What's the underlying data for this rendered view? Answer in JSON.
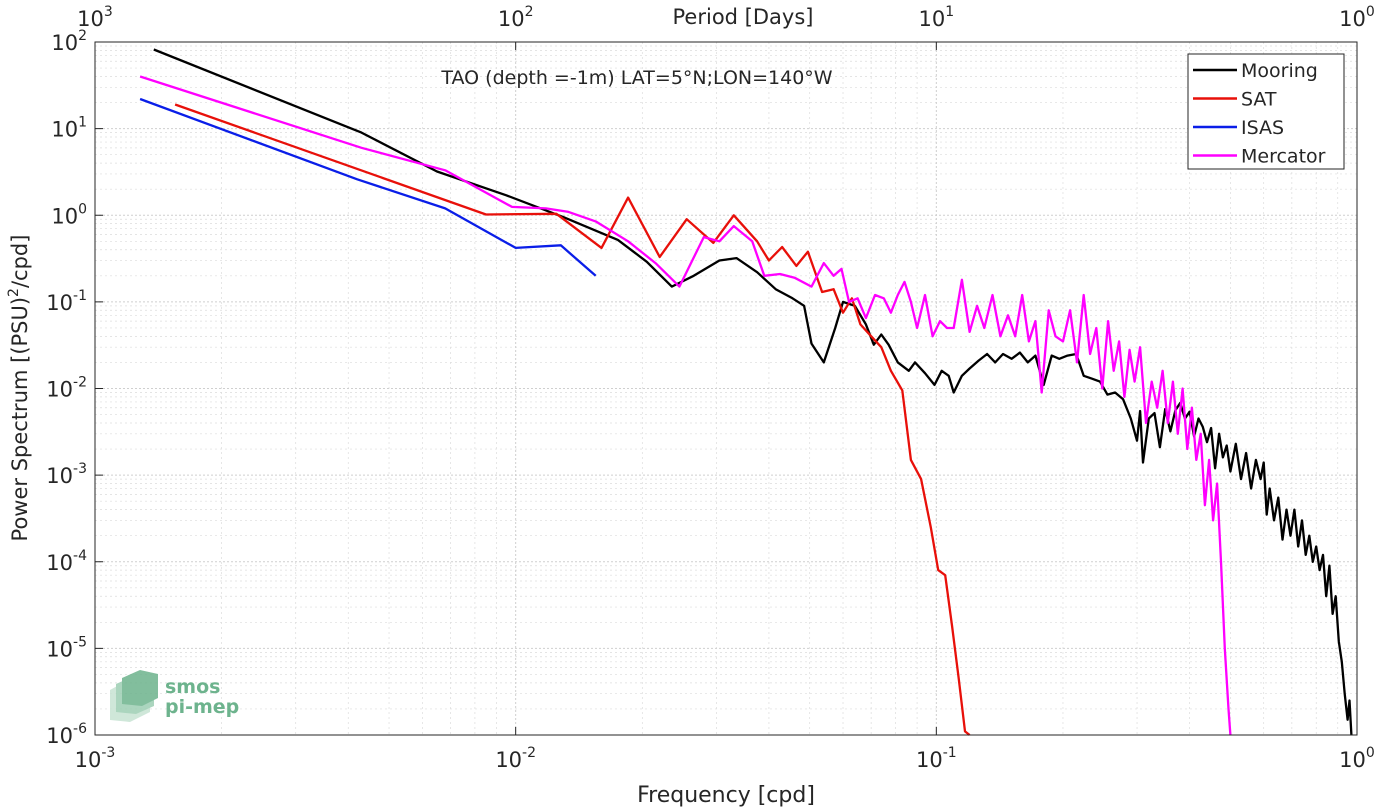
{
  "chart_data": {
    "type": "line",
    "title": "TAO (depth =-1m) LAT=5°N;LON=140°W",
    "xlabel": "Frequency [cpd]",
    "ylabel_main": "Power Spectrum [(PSU)",
    "ylabel_sup": "2",
    "ylabel_tail": "/cpd]",
    "top_xlabel": "Period [Days]",
    "xscale": "log",
    "yscale": "log",
    "xlim": [
      0.001,
      1
    ],
    "ylim": [
      1e-06,
      100
    ],
    "grid": true,
    "legend_position": "top-right",
    "x_ticks": [
      {
        "value": 0.001,
        "base": "10",
        "exp": "-3"
      },
      {
        "value": 0.01,
        "base": "10",
        "exp": "-2"
      },
      {
        "value": 0.1,
        "base": "10",
        "exp": "-1"
      },
      {
        "value": 1,
        "base": "10",
        "exp": "0"
      }
    ],
    "y_ticks": [
      {
        "value": 1e-06,
        "base": "10",
        "exp": "-6"
      },
      {
        "value": 1e-05,
        "base": "10",
        "exp": "-5"
      },
      {
        "value": 0.0001,
        "base": "10",
        "exp": "-4"
      },
      {
        "value": 0.001,
        "base": "10",
        "exp": "-3"
      },
      {
        "value": 0.01,
        "base": "10",
        "exp": "-2"
      },
      {
        "value": 0.1,
        "base": "10",
        "exp": "-1"
      },
      {
        "value": 1,
        "base": "10",
        "exp": "0"
      },
      {
        "value": 10,
        "base": "10",
        "exp": "1"
      },
      {
        "value": 100,
        "base": "10",
        "exp": "2"
      }
    ],
    "top_ticks": [
      {
        "period_days": 1000,
        "base": "10",
        "exp": "3"
      },
      {
        "period_days": 100,
        "base": "10",
        "exp": "2"
      },
      {
        "period_days": 10,
        "base": "10",
        "exp": "1"
      },
      {
        "period_days": 1,
        "base": "10",
        "exp": "0"
      }
    ],
    "series": [
      {
        "name": "Mooring",
        "color": "#000000",
        "points": [
          [
            0.00138,
            82
          ],
          [
            0.0043,
            9
          ],
          [
            0.0065,
            3.2
          ],
          [
            0.0095,
            1.7
          ],
          [
            0.013,
            0.95
          ],
          [
            0.0175,
            0.52
          ],
          [
            0.0205,
            0.29
          ],
          [
            0.0235,
            0.15
          ],
          [
            0.0265,
            0.2
          ],
          [
            0.0305,
            0.3
          ],
          [
            0.0335,
            0.32
          ],
          [
            0.0375,
            0.22
          ],
          [
            0.0415,
            0.14
          ],
          [
            0.0455,
            0.11
          ],
          [
            0.0485,
            0.09
          ],
          [
            0.0505,
            0.033
          ],
          [
            0.054,
            0.02
          ],
          [
            0.0575,
            0.05
          ],
          [
            0.06,
            0.1
          ],
          [
            0.064,
            0.09
          ],
          [
            0.068,
            0.055
          ],
          [
            0.071,
            0.032
          ],
          [
            0.074,
            0.042
          ],
          [
            0.077,
            0.032
          ],
          [
            0.081,
            0.02
          ],
          [
            0.086,
            0.016
          ],
          [
            0.089,
            0.02
          ],
          [
            0.094,
            0.015
          ],
          [
            0.099,
            0.011
          ],
          [
            0.103,
            0.016
          ],
          [
            0.107,
            0.014
          ],
          [
            0.11,
            0.009
          ],
          [
            0.115,
            0.014
          ],
          [
            0.12,
            0.017
          ],
          [
            0.126,
            0.021
          ],
          [
            0.132,
            0.025
          ],
          [
            0.138,
            0.02
          ],
          [
            0.144,
            0.025
          ],
          [
            0.151,
            0.022
          ],
          [
            0.158,
            0.026
          ],
          [
            0.165,
            0.02
          ],
          [
            0.172,
            0.024
          ],
          [
            0.18,
            0.011
          ],
          [
            0.188,
            0.024
          ],
          [
            0.196,
            0.022
          ],
          [
            0.205,
            0.024
          ],
          [
            0.215,
            0.025
          ],
          [
            0.224,
            0.014
          ],
          [
            0.234,
            0.013
          ],
          [
            0.245,
            0.012
          ],
          [
            0.255,
            0.0085
          ],
          [
            0.266,
            0.009
          ],
          [
            0.278,
            0.0075
          ],
          [
            0.29,
            0.0045
          ],
          [
            0.3,
            0.0025
          ],
          [
            0.305,
            0.0055
          ],
          [
            0.31,
            0.0014
          ],
          [
            0.32,
            0.0045
          ],
          [
            0.33,
            0.0052
          ],
          [
            0.34,
            0.0021
          ],
          [
            0.35,
            0.0058
          ],
          [
            0.36,
            0.0032
          ],
          [
            0.37,
            0.0056
          ],
          [
            0.38,
            0.0068
          ],
          [
            0.39,
            0.0045
          ],
          [
            0.4,
            0.0054
          ],
          [
            0.41,
            0.0028
          ],
          [
            0.42,
            0.0045
          ],
          [
            0.43,
            0.0036
          ],
          [
            0.44,
            0.0024
          ],
          [
            0.45,
            0.0035
          ],
          [
            0.46,
            0.0012
          ],
          [
            0.47,
            0.003
          ],
          [
            0.48,
            0.0016
          ],
          [
            0.49,
            0.0022
          ],
          [
            0.5,
            0.0011
          ],
          [
            0.515,
            0.0023
          ],
          [
            0.53,
            0.0009
          ],
          [
            0.545,
            0.0018
          ],
          [
            0.56,
            0.0007
          ],
          [
            0.575,
            0.0015
          ],
          [
            0.59,
            0.0009
          ],
          [
            0.6,
            0.0014
          ],
          [
            0.61,
            0.00035
          ],
          [
            0.62,
            0.0007
          ],
          [
            0.635,
            0.0003
          ],
          [
            0.65,
            0.00055
          ],
          [
            0.665,
            0.00018
          ],
          [
            0.68,
            0.0004
          ],
          [
            0.695,
            0.0002
          ],
          [
            0.71,
            0.0004
          ],
          [
            0.725,
            0.00015
          ],
          [
            0.74,
            0.0003
          ],
          [
            0.755,
            0.00012
          ],
          [
            0.77,
            0.0002
          ],
          [
            0.785,
            0.0001
          ],
          [
            0.8,
            0.00015
          ],
          [
            0.815,
            8e-05
          ],
          [
            0.83,
            0.00012
          ],
          [
            0.845,
            4e-05
          ],
          [
            0.86,
            9e-05
          ],
          [
            0.875,
            2.5e-05
          ],
          [
            0.89,
            4e-05
          ],
          [
            0.905,
            1.2e-05
          ],
          [
            0.92,
            7e-06
          ],
          [
            0.935,
            3e-06
          ],
          [
            0.95,
            1.5e-06
          ],
          [
            0.96,
            2.5e-06
          ],
          [
            0.97,
            1e-06
          ]
        ]
      },
      {
        "name": "SAT",
        "color": "#e8100a",
        "points": [
          [
            0.00155,
            19
          ],
          [
            0.0085,
            1.02
          ],
          [
            0.0125,
            1.04
          ],
          [
            0.016,
            0.42
          ],
          [
            0.0185,
            1.6
          ],
          [
            0.022,
            0.33
          ],
          [
            0.0255,
            0.9
          ],
          [
            0.0295,
            0.48
          ],
          [
            0.033,
            1.0
          ],
          [
            0.0375,
            0.5
          ],
          [
            0.04,
            0.3
          ],
          [
            0.043,
            0.43
          ],
          [
            0.0465,
            0.26
          ],
          [
            0.0495,
            0.38
          ],
          [
            0.0535,
            0.13
          ],
          [
            0.057,
            0.14
          ],
          [
            0.06,
            0.075
          ],
          [
            0.063,
            0.11
          ],
          [
            0.066,
            0.055
          ],
          [
            0.07,
            0.04
          ],
          [
            0.074,
            0.03
          ],
          [
            0.078,
            0.016
          ],
          [
            0.083,
            0.0095
          ],
          [
            0.087,
            0.0015
          ],
          [
            0.092,
            0.0009
          ],
          [
            0.097,
            0.00025
          ],
          [
            0.101,
            8e-05
          ],
          [
            0.105,
            7e-05
          ],
          [
            0.109,
            1.8e-05
          ],
          [
            0.113,
            4.5e-06
          ],
          [
            0.117,
            1.1e-06
          ],
          [
            0.12,
            1e-06
          ]
        ]
      },
      {
        "name": "ISAS",
        "color": "#0a1ee8",
        "points": [
          [
            0.00128,
            22
          ],
          [
            0.0042,
            2.6
          ],
          [
            0.0068,
            1.2
          ],
          [
            0.01,
            0.42
          ],
          [
            0.0128,
            0.45
          ],
          [
            0.0155,
            0.2
          ]
        ]
      },
      {
        "name": "Mercator",
        "color": "#ff00ff",
        "points": [
          [
            0.00128,
            40
          ],
          [
            0.0043,
            6
          ],
          [
            0.0068,
            3.3
          ],
          [
            0.0098,
            1.25
          ],
          [
            0.0118,
            1.2
          ],
          [
            0.0133,
            1.1
          ],
          [
            0.0155,
            0.85
          ],
          [
            0.0185,
            0.5
          ],
          [
            0.0215,
            0.28
          ],
          [
            0.0245,
            0.15
          ],
          [
            0.028,
            0.56
          ],
          [
            0.0305,
            0.5
          ],
          [
            0.033,
            0.75
          ],
          [
            0.0365,
            0.5
          ],
          [
            0.039,
            0.2
          ],
          [
            0.0425,
            0.21
          ],
          [
            0.046,
            0.19
          ],
          [
            0.0505,
            0.15
          ],
          [
            0.054,
            0.28
          ],
          [
            0.057,
            0.2
          ],
          [
            0.0595,
            0.24
          ],
          [
            0.062,
            0.1
          ],
          [
            0.065,
            0.11
          ],
          [
            0.068,
            0.065
          ],
          [
            0.0715,
            0.12
          ],
          [
            0.075,
            0.11
          ],
          [
            0.078,
            0.075
          ],
          [
            0.081,
            0.12
          ],
          [
            0.084,
            0.17
          ],
          [
            0.087,
            0.1
          ],
          [
            0.09,
            0.05
          ],
          [
            0.094,
            0.12
          ],
          [
            0.098,
            0.04
          ],
          [
            0.102,
            0.06
          ],
          [
            0.106,
            0.05
          ],
          [
            0.11,
            0.05
          ],
          [
            0.115,
            0.18
          ],
          [
            0.12,
            0.045
          ],
          [
            0.125,
            0.09
          ],
          [
            0.13,
            0.05
          ],
          [
            0.136,
            0.12
          ],
          [
            0.142,
            0.04
          ],
          [
            0.148,
            0.07
          ],
          [
            0.154,
            0.04
          ],
          [
            0.16,
            0.12
          ],
          [
            0.166,
            0.035
          ],
          [
            0.172,
            0.06
          ],
          [
            0.178,
            0.009
          ],
          [
            0.185,
            0.08
          ],
          [
            0.192,
            0.04
          ],
          [
            0.2,
            0.035
          ],
          [
            0.208,
            0.08
          ],
          [
            0.216,
            0.02
          ],
          [
            0.224,
            0.12
          ],
          [
            0.232,
            0.025
          ],
          [
            0.24,
            0.05
          ],
          [
            0.248,
            0.01
          ],
          [
            0.256,
            0.06
          ],
          [
            0.264,
            0.016
          ],
          [
            0.272,
            0.035
          ],
          [
            0.28,
            0.008
          ],
          [
            0.288,
            0.028
          ],
          [
            0.296,
            0.012
          ],
          [
            0.305,
            0.03
          ],
          [
            0.315,
            0.004
          ],
          [
            0.325,
            0.012
          ],
          [
            0.335,
            0.006
          ],
          [
            0.345,
            0.016
          ],
          [
            0.355,
            0.004
          ],
          [
            0.365,
            0.012
          ],
          [
            0.375,
            0.003
          ],
          [
            0.385,
            0.01
          ],
          [
            0.395,
            0.002
          ],
          [
            0.405,
            0.006
          ],
          [
            0.415,
            0.0015
          ],
          [
            0.425,
            0.003
          ],
          [
            0.435,
            0.00045
          ],
          [
            0.445,
            0.0015
          ],
          [
            0.455,
            0.0003
          ],
          [
            0.465,
            0.0008
          ],
          [
            0.475,
            0.0001
          ],
          [
            0.485,
            1e-05
          ],
          [
            0.495,
            2e-06
          ],
          [
            0.5,
            1e-06
          ]
        ]
      }
    ]
  },
  "watermark": {
    "line1": "smos",
    "line2": "pi-mep",
    "color": "#6db38d"
  }
}
